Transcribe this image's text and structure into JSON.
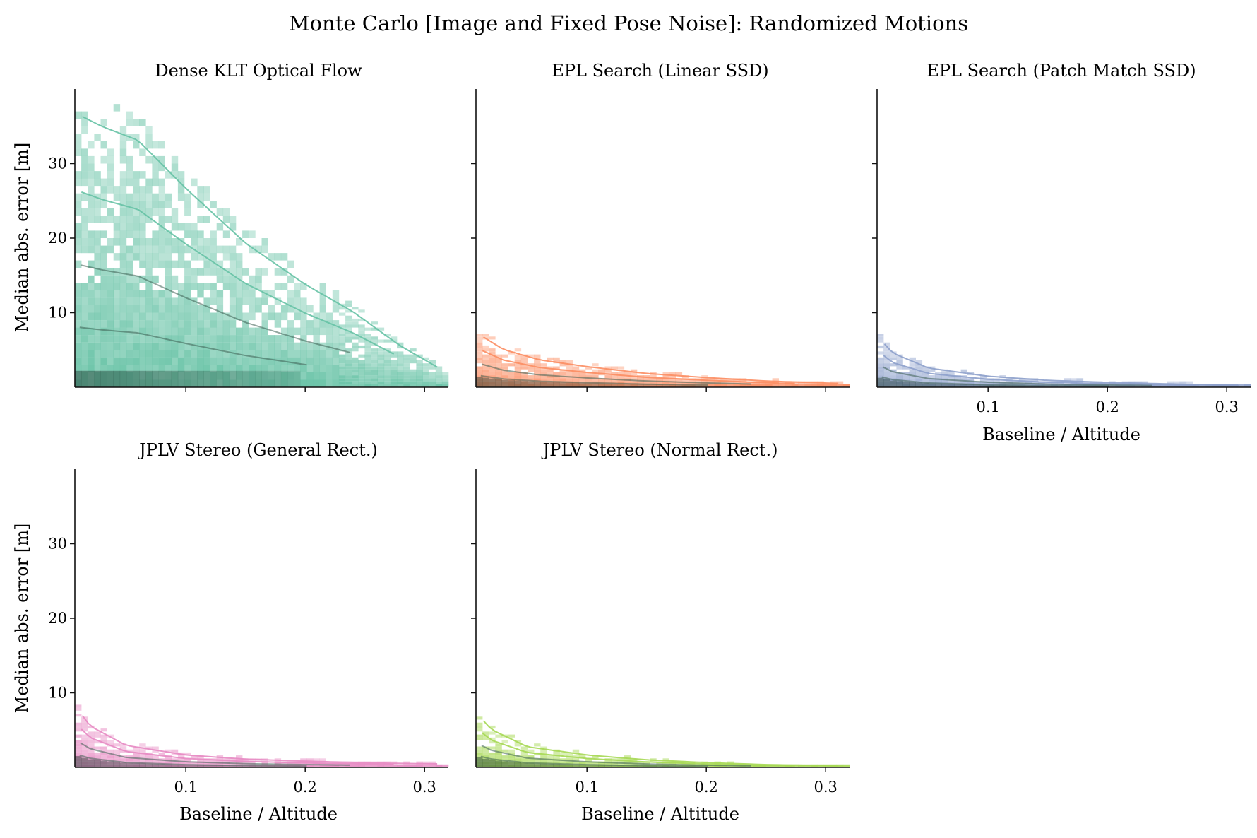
{
  "figure": {
    "title": "Monte Carlo [Image and Fixed Pose Noise]: Randomized Motions"
  },
  "chart_data": [
    {
      "type": "heatmap",
      "title": "Dense KLT Optical Flow",
      "xlabel": "",
      "ylabel": "Median abs. error [m]",
      "xlim": [
        0.007,
        0.32
      ],
      "ylim": [
        0,
        40
      ],
      "xticks": [
        0.1,
        0.2,
        0.3
      ],
      "yticks": [
        10,
        20,
        30
      ],
      "color": "#66c2a5",
      "grid": false,
      "profile": {
        "x": [
          0.007,
          0.03,
          0.06,
          0.1,
          0.15,
          0.2,
          0.24,
          0.28,
          0.32
        ],
        "ymax": [
          40,
          38,
          36,
          29,
          21,
          15,
          11,
          6,
          2
        ]
      }
    },
    {
      "type": "heatmap",
      "title": "EPL Search (Linear SSD)",
      "xlabel": "",
      "ylabel": "",
      "xlim": [
        0.007,
        0.32
      ],
      "ylim": [
        0,
        40
      ],
      "xticks": [
        0.1,
        0.2,
        0.3
      ],
      "yticks": [
        10,
        20,
        30
      ],
      "color": "#fc8d62",
      "grid": false,
      "profile": {
        "x": [
          0.007,
          0.03,
          0.06,
          0.1,
          0.15,
          0.2,
          0.25,
          0.32
        ],
        "ymax": [
          8,
          5.5,
          4,
          3,
          2,
          1.4,
          0.9,
          0.5
        ]
      }
    },
    {
      "type": "heatmap",
      "title": "EPL Search (Patch Match SSD)",
      "xlabel": "Baseline / Altitude",
      "ylabel": "",
      "xlim": [
        0.007,
        0.32
      ],
      "ylim": [
        0,
        40
      ],
      "xticks": [
        0.1,
        0.2,
        0.3
      ],
      "yticks": [
        10,
        20,
        30
      ],
      "color": "#8da0cb",
      "grid": false,
      "profile": {
        "x": [
          0.007,
          0.02,
          0.05,
          0.1,
          0.15,
          0.2,
          0.27,
          0.32
        ],
        "ymax": [
          7.5,
          5,
          2.8,
          1.6,
          1.0,
          0.7,
          0.4,
          0.2
        ]
      }
    },
    {
      "type": "heatmap",
      "title": "JPLV Stereo (General Rect.)",
      "xlabel": "Baseline / Altitude",
      "ylabel": "Median abs. error [m]",
      "xlim": [
        0.007,
        0.32
      ],
      "ylim": [
        0,
        40
      ],
      "xticks": [
        0.1,
        0.2,
        0.3
      ],
      "yticks": [
        10,
        20,
        30
      ],
      "color": "#e78ac3",
      "grid": false,
      "profile": {
        "x": [
          0.007,
          0.02,
          0.05,
          0.1,
          0.15,
          0.2,
          0.27,
          0.32
        ],
        "ymax": [
          9,
          6,
          3.2,
          1.8,
          1.2,
          0.9,
          0.6,
          0.5
        ]
      }
    },
    {
      "type": "heatmap",
      "title": "JPLV Stereo (Normal Rect.)",
      "xlabel": "Baseline / Altitude",
      "ylabel": "",
      "xlim": [
        0.007,
        0.32
      ],
      "ylim": [
        0,
        40
      ],
      "xticks": [
        0.1,
        0.2,
        0.3
      ],
      "yticks": [
        10,
        20,
        30
      ],
      "color": "#a6d854",
      "grid": false,
      "profile": {
        "x": [
          0.007,
          0.02,
          0.05,
          0.1,
          0.15,
          0.2,
          0.25,
          0.32
        ],
        "ymax": [
          8,
          5.5,
          3,
          1.8,
          1.1,
          0.7,
          0.4,
          0.2
        ]
      }
    }
  ]
}
